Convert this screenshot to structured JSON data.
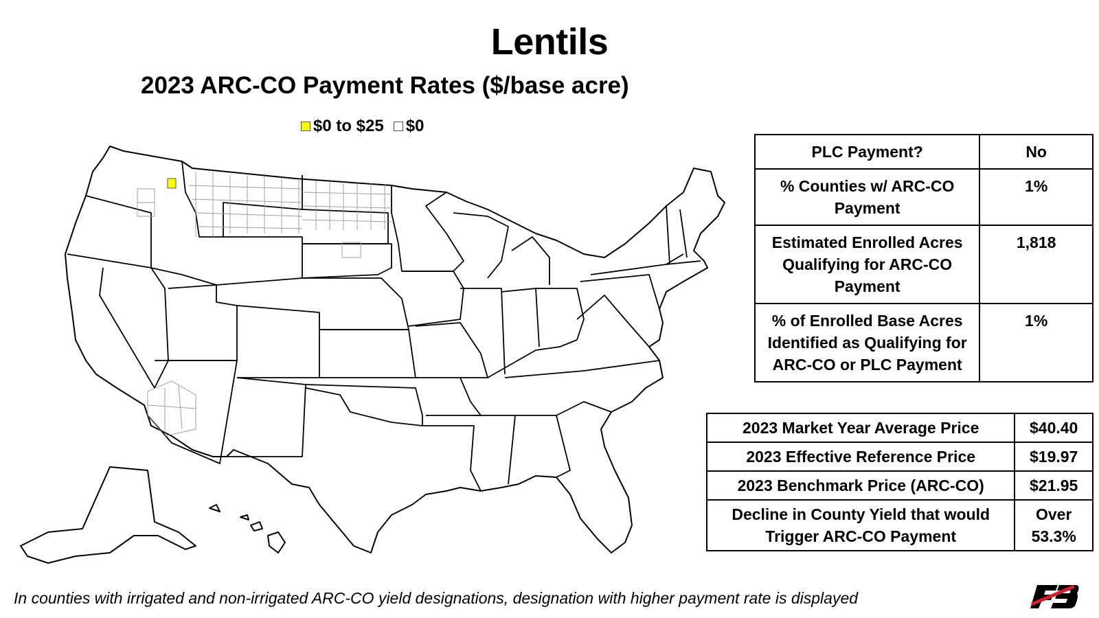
{
  "title": "Lentils",
  "subtitle": "2023 ARC-CO Payment Rates ($/base acre)",
  "legend": [
    {
      "label": "$0 to $25",
      "color": "#ffff00"
    },
    {
      "label": "$0",
      "color": "#ffffff"
    }
  ],
  "plc_table": {
    "rows": [
      {
        "label": "PLC Payment?",
        "value": "No"
      },
      {
        "label": "% Counties w/ ARC-CO Payment",
        "value": "1%"
      },
      {
        "label": "Estimated Enrolled Acres Qualifying for ARC-CO Payment",
        "value": "1,818"
      },
      {
        "label": "% of Enrolled Base Acres Identified as Qualifying for ARC-CO or PLC Payment",
        "value": "1%"
      }
    ]
  },
  "price_table": {
    "rows": [
      {
        "label": "2023 Market Year Average Price",
        "value": "$40.40"
      },
      {
        "label": "2023 Effective Reference Price",
        "value": "$19.97"
      },
      {
        "label": "2023 Benchmark Price (ARC-CO)",
        "value": "$21.95"
      },
      {
        "label": "Decline in County Yield that would Trigger ARC-CO Payment",
        "value": "Over 53.3%"
      }
    ]
  },
  "footnote": "In counties with irrigated and non-irrigated ARC-CO yield designations, designation with higher payment rate is displayed",
  "logo_icon": "farm-bureau-logo",
  "colors": {
    "highlight_county": "#ffff00",
    "zero_county": "#ffffff"
  }
}
